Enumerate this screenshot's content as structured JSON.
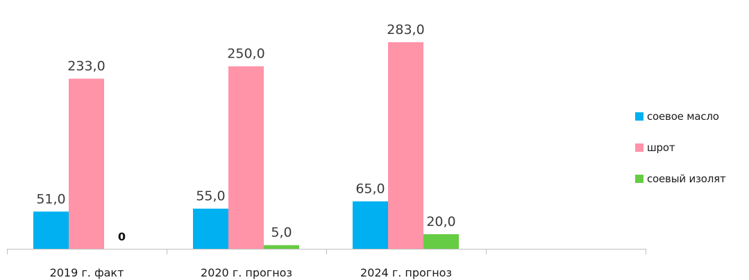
{
  "chart_data": {
    "type": "bar",
    "categories": [
      "2019 г. факт",
      "2020 г. прогноз",
      "2024 г. прогноз",
      ""
    ],
    "series": [
      {
        "name": "соевое масло",
        "color": "#00b0f0",
        "values": [
          51.0,
          55.0,
          65.0,
          null
        ],
        "labels": [
          "51,0",
          "55,0",
          "65,0",
          ""
        ]
      },
      {
        "name": "шрот",
        "color": "#ff93a8",
        "values": [
          233.0,
          250.0,
          283.0,
          null
        ],
        "labels": [
          "233,0",
          "250,0",
          "283,0",
          ""
        ]
      },
      {
        "name": "соевый изолят",
        "color": "#66cc44",
        "values": [
          0,
          5.0,
          20.0,
          null
        ],
        "labels": [
          "0",
          "5,0",
          "20,0",
          ""
        ]
      }
    ],
    "ylim": [
      0,
      300
    ],
    "title": "",
    "xlabel": "",
    "ylabel": "",
    "grid": false,
    "legend_position": "right"
  }
}
